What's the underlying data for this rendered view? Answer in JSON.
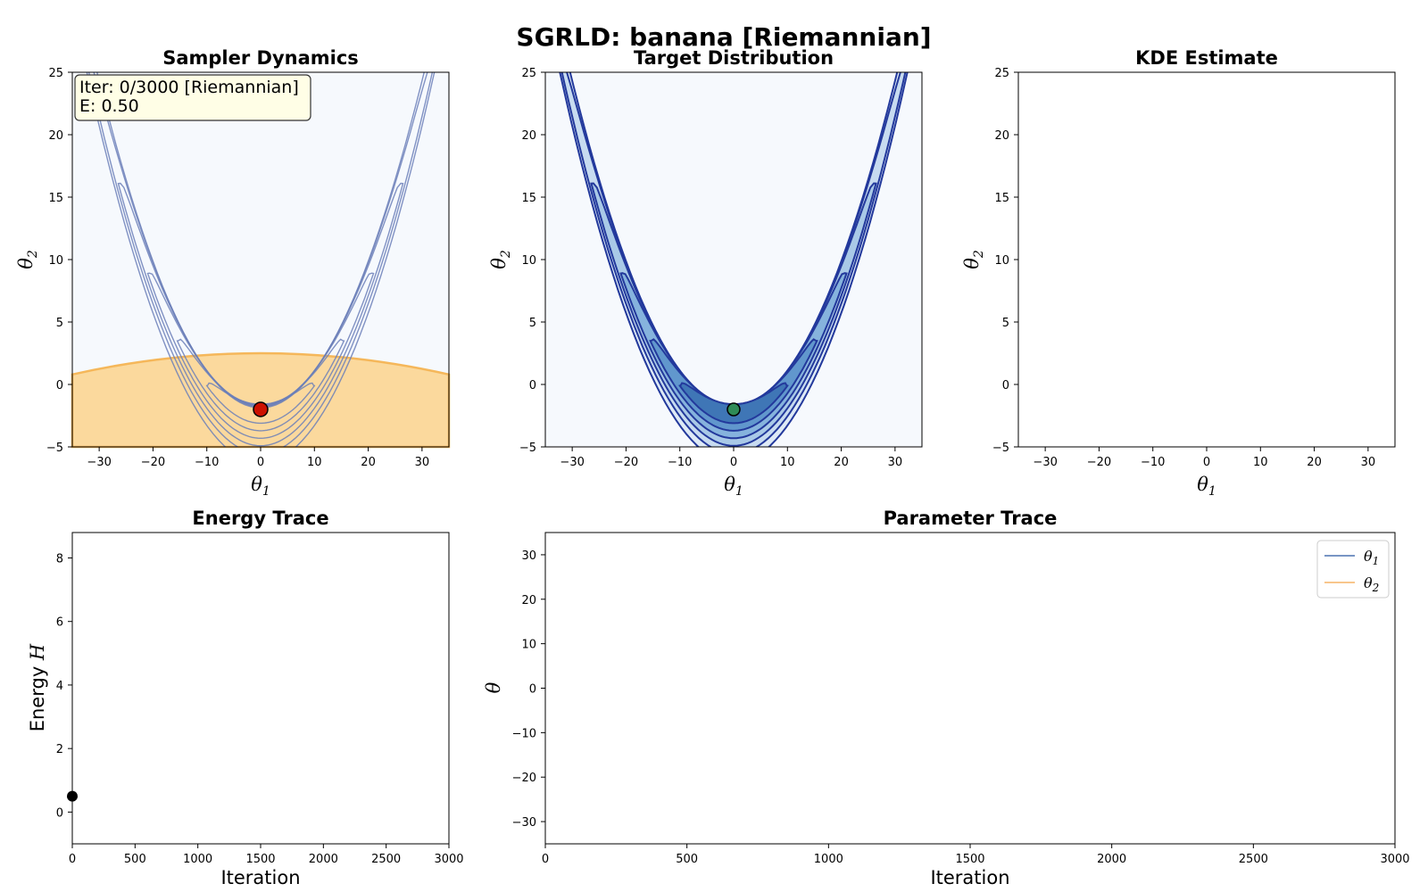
{
  "figure": {
    "title": "SGRLD: banana [Riemannian]"
  },
  "chart_data": [
    {
      "id": "dyn",
      "type": "contour",
      "title": "Sampler Dynamics",
      "xlabel": "θ1",
      "ylabel": "θ2",
      "xlim": [
        -35,
        35
      ],
      "ylim": [
        -5,
        25
      ],
      "xticks": [
        -30,
        -20,
        -10,
        0,
        10,
        20,
        30
      ],
      "yticks": [
        -5,
        0,
        5,
        10,
        15,
        20,
        25
      ],
      "annotation": {
        "line1": "Iter: 0/3000 [Riemannian]",
        "line2": "E: 0.50"
      },
      "sample_point": {
        "x": 0,
        "y": -2
      },
      "overlay": {
        "type": "region",
        "top_center": 2.5,
        "top_edge": 0.8
      },
      "colors": {
        "background": "#f6f9fd",
        "overlay": "#fbd798",
        "overlay_edge": "#f5b75a",
        "contour": "#6b7fb8",
        "point": "#cc1100"
      }
    },
    {
      "id": "target",
      "type": "contour",
      "title": "Target Distribution",
      "xlabel": "θ1",
      "ylabel": "θ2",
      "xlim": [
        -35,
        35
      ],
      "ylim": [
        -5,
        25
      ],
      "xticks": [
        -30,
        -20,
        -10,
        0,
        10,
        20,
        30
      ],
      "yticks": [
        -5,
        0,
        5,
        10,
        15,
        20,
        25
      ],
      "sample_point": {
        "x": 0,
        "y": -2
      },
      "colors": {
        "background": "#f6f9fd",
        "contour": "#23399c",
        "fill": "#c7dbef",
        "point": "#2e8b57"
      }
    },
    {
      "id": "kde",
      "type": "empty",
      "title": "KDE Estimate",
      "xlabel": "θ1",
      "ylabel": "θ2",
      "xlim": [
        -35,
        35
      ],
      "ylim": [
        -5,
        25
      ],
      "xticks": [
        -30,
        -20,
        -10,
        0,
        10,
        20,
        30
      ],
      "yticks": [
        -5,
        0,
        5,
        10,
        15,
        20,
        25
      ]
    },
    {
      "id": "energy",
      "type": "line",
      "title": "Energy Trace",
      "xlabel": "Iteration",
      "ylabel": "Energy H",
      "xlim": [
        0,
        3000
      ],
      "ylim": [
        -1,
        8.8
      ],
      "xticks": [
        0,
        500,
        1000,
        1500,
        2000,
        2500,
        3000
      ],
      "yticks": [
        0,
        2,
        4,
        6,
        8
      ],
      "points": [
        {
          "x": 0,
          "y": 0.5
        }
      ]
    },
    {
      "id": "params",
      "type": "line",
      "title": "Parameter Trace",
      "xlabel": "Iteration",
      "ylabel": "θ",
      "xlim": [
        0,
        3000
      ],
      "ylim": [
        -35,
        35
      ],
      "xticks": [
        0,
        500,
        1000,
        1500,
        2000,
        2500,
        3000
      ],
      "yticks": [
        -30,
        -20,
        -10,
        0,
        10,
        20,
        30
      ],
      "series": [
        {
          "name": "θ1",
          "color": "#4c72b0",
          "values": []
        },
        {
          "name": "θ2",
          "color": "#f5b366",
          "values": []
        }
      ],
      "legend": "top-right"
    }
  ]
}
